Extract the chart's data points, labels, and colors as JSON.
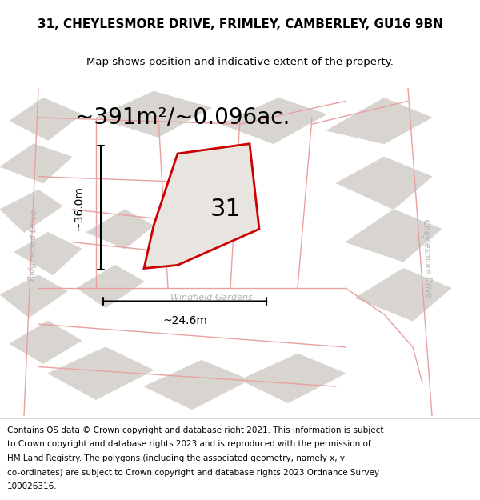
{
  "title_line1": "31, CHEYLESMORE DRIVE, FRIMLEY, CAMBERLEY, GU16 9BN",
  "title_line2": "Map shows position and indicative extent of the property.",
  "area_text": "~391m²/~0.096ac.",
  "dim_height": "~36.0m",
  "dim_width": "~24.6m",
  "label_number": "31",
  "road_label1": "Wingfield Gardens",
  "road_label2": "Cheylesmore Drive",
  "road_label3": "Ridgewood Drive",
  "footer_lines": [
    "Contains OS data © Crown copyright and database right 2021. This information is subject",
    "to Crown copyright and database rights 2023 and is reproduced with the permission of",
    "HM Land Registry. The polygons (including the associated geometry, namely x, y",
    "co-ordinates) are subject to Crown copyright and database rights 2023 Ordnance Survey",
    "100026316."
  ],
  "bg_color": "#eeece8",
  "bld_color": "#d8d5d0",
  "plot_outline_color": "#cc0000",
  "plot_fill_color": "#e8e4e0",
  "road_line_color": "#e8a0a0",
  "street_text_color": "#b0b0b0",
  "title_fontsize": 11,
  "subtitle_fontsize": 9.5,
  "area_fontsize": 20,
  "dim_fontsize": 10,
  "number_fontsize": 22,
  "footer_fontsize": 7.5
}
